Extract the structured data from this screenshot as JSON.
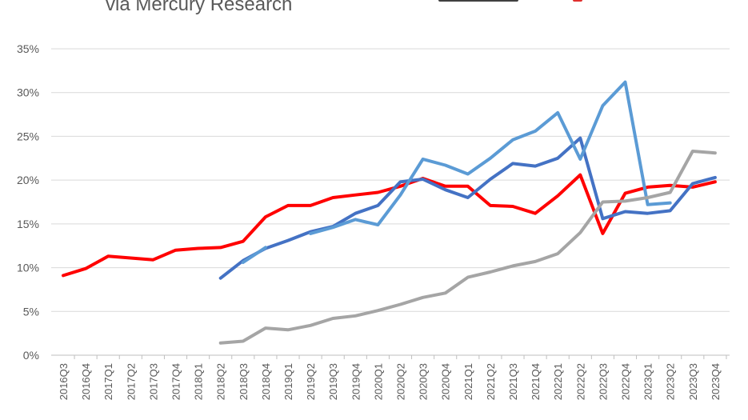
{
  "header": {
    "subtitle": "via Mercury Research"
  },
  "chart_data": {
    "type": "line",
    "title": "via Mercury Research",
    "xlabel": "",
    "ylabel": "",
    "ylim": [
      0,
      35
    ],
    "grid": true,
    "legend": "none",
    "y_ticks": [
      "0%",
      "5%",
      "10%",
      "15%",
      "20%",
      "25%",
      "30%",
      "35%"
    ],
    "y_tick_values": [
      0,
      5,
      10,
      15,
      20,
      25,
      30,
      35
    ],
    "categories": [
      "2016Q3",
      "2016Q4",
      "2017Q1",
      "2017Q2",
      "2017Q3",
      "2017Q4",
      "2018Q1",
      "2018Q2",
      "2018Q3",
      "2018Q4",
      "2019Q1",
      "2019Q2",
      "2019Q3",
      "2019Q4",
      "2020Q1",
      "2020Q2",
      "2020Q3",
      "2020Q4",
      "2021Q1",
      "2021Q2",
      "2021Q3",
      "2021Q4",
      "2022Q1",
      "2022Q2",
      "2022Q3",
      "2022Q4",
      "2023Q1",
      "2023Q2",
      "2023Q3",
      "2023Q4"
    ],
    "series": [
      {
        "color": "#ff0000",
        "values": [
          9.1,
          9.9,
          11.3,
          11.1,
          10.9,
          12.0,
          12.2,
          12.3,
          13.0,
          15.8,
          17.1,
          17.1,
          18.0,
          18.3,
          18.6,
          19.3,
          20.2,
          19.3,
          19.3,
          17.1,
          17.0,
          16.2,
          18.2,
          20.6,
          13.9,
          18.5,
          19.2,
          19.4,
          19.2,
          19.8
        ]
      },
      {
        "color": "#4472c4",
        "values": [
          null,
          null,
          null,
          null,
          null,
          null,
          null,
          8.8,
          10.8,
          12.2,
          13.1,
          14.1,
          14.7,
          16.2,
          17.1,
          19.8,
          20.1,
          18.9,
          18.0,
          20.1,
          21.9,
          21.6,
          22.5,
          24.8,
          15.6,
          16.4,
          16.2,
          16.5,
          19.6,
          20.3
        ]
      },
      {
        "color": "#5b9bd5",
        "values": [
          null,
          null,
          null,
          null,
          null,
          null,
          null,
          null,
          10.6,
          12.3,
          null,
          13.9,
          14.6,
          15.5,
          14.9,
          18.3,
          22.4,
          21.7,
          20.7,
          22.5,
          24.6,
          25.6,
          27.7,
          22.4,
          28.5,
          31.2,
          17.2,
          17.4,
          null,
          null
        ]
      },
      {
        "color": "#a5a5a5",
        "values": [
          null,
          null,
          null,
          null,
          null,
          null,
          null,
          1.4,
          1.6,
          3.1,
          2.9,
          3.4,
          4.2,
          4.5,
          5.1,
          5.8,
          6.6,
          7.1,
          8.9,
          9.5,
          10.2,
          10.7,
          11.6,
          14.0,
          17.5,
          17.6,
          18.0,
          18.6,
          23.3,
          23.1
        ]
      }
    ]
  },
  "colors": {
    "grid": "#d9d9d9",
    "axis": "#bfbfbf",
    "text": "#595959",
    "logo_dark": "#404040",
    "logo_red": "#e0302e"
  }
}
